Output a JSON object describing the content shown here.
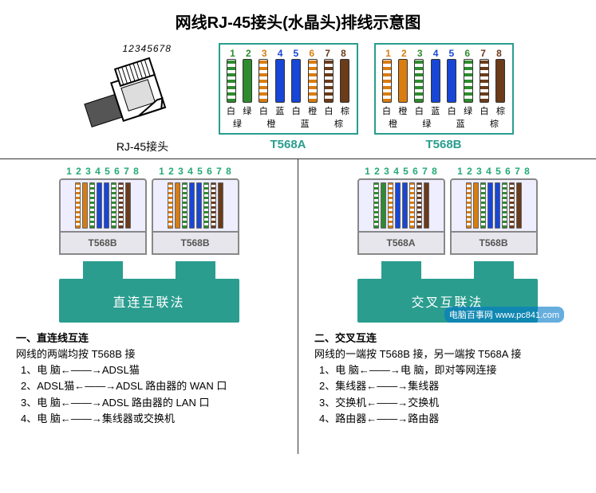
{
  "title": "网线RJ-45接头(水晶头)排线示意图",
  "rj45": {
    "label": "RJ-45接头",
    "numbers": "12345678"
  },
  "pin_numbers": [
    "1",
    "2",
    "3",
    "4",
    "5",
    "6",
    "7",
    "8"
  ],
  "t568a": {
    "name": "T568A",
    "colors": [
      "#2e8b2e",
      "#2e8b2e",
      "#d97d10",
      "#1846d6",
      "#1846d6",
      "#d97d10",
      "#6b3b1a",
      "#6b3b1a"
    ],
    "striped": [
      true,
      false,
      true,
      false,
      false,
      true,
      true,
      false
    ],
    "labels_top": [
      "白",
      "绿",
      "白",
      "蓝",
      "白",
      "橙",
      "白",
      "棕"
    ],
    "labels_bot": [
      "绿",
      "橙",
      "蓝",
      "棕"
    ]
  },
  "t568b": {
    "name": "T568B",
    "colors": [
      "#d97d10",
      "#d97d10",
      "#2e8b2e",
      "#1846d6",
      "#1846d6",
      "#2e8b2e",
      "#6b3b1a",
      "#6b3b1a"
    ],
    "striped": [
      true,
      false,
      true,
      false,
      false,
      true,
      true,
      false
    ],
    "labels_top": [
      "白",
      "橙",
      "白",
      "蓝",
      "白",
      "绿",
      "白",
      "棕"
    ],
    "labels_bot": [
      "橙",
      "绿",
      "蓝",
      "棕"
    ]
  },
  "straight": {
    "method_label": "直连互联法",
    "left": "T568B",
    "right": "T568B",
    "heading": "一、直连线互连",
    "sub": "网线的两端均按 T568B 接",
    "items": [
      "1、电  脑←——→ADSL猫",
      "2、ADSL猫←——→ADSL 路由器的 WAN 口",
      "3、电  脑←——→ADSL 路由器的 LAN 口",
      "4、电  脑←——→集线器或交换机"
    ]
  },
  "cross": {
    "method_label": "交叉互联法",
    "left": "T568A",
    "right": "T568B",
    "heading": "二、交叉互连",
    "sub": "网线的一端按 T568B 接，另一端按 T568A 接",
    "items": [
      "1、电  脑←——→电  脑，即对等网连接",
      "2、集线器←——→集线器",
      "3、交换机←——→交换机",
      "4、路由器←——→路由器"
    ]
  },
  "watermark": "电脑百事网 www.pc841.com",
  "style": {
    "border_color": "#2a9d8f",
    "number_color": "#2a7"
  }
}
